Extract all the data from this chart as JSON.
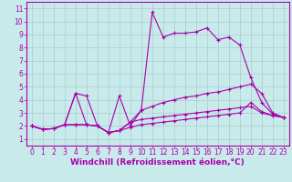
{
  "bg_color": "#c8eaea",
  "line_color": "#aa00aa",
  "grid_color": "#aacccc",
  "xlabel": "Windchill (Refroidissement éolien,°C)",
  "xlabel_fontsize": 6.5,
  "tick_fontsize": 5.5,
  "yticks": [
    1,
    2,
    3,
    4,
    5,
    6,
    7,
    8,
    9,
    10,
    11
  ],
  "xticks": [
    0,
    1,
    2,
    3,
    4,
    5,
    6,
    7,
    8,
    9,
    10,
    11,
    12,
    13,
    14,
    15,
    16,
    17,
    18,
    19,
    20,
    21,
    22,
    23
  ],
  "ylim": [
    0.5,
    11.5
  ],
  "xlim": [
    -0.5,
    23.5
  ],
  "series": [
    [
      2.0,
      1.75,
      1.8,
      2.1,
      4.5,
      4.3,
      2.0,
      1.5,
      1.65,
      1.9,
      2.1,
      2.2,
      2.3,
      2.4,
      2.5,
      2.6,
      2.7,
      2.8,
      2.9,
      3.0,
      3.8,
      3.1,
      2.8,
      2.65
    ],
    [
      2.0,
      1.75,
      1.8,
      2.1,
      4.5,
      2.1,
      2.0,
      1.5,
      4.3,
      2.0,
      3.2,
      10.7,
      8.8,
      9.1,
      9.1,
      9.2,
      9.5,
      8.6,
      8.8,
      8.2,
      5.7,
      3.8,
      2.9,
      2.65
    ],
    [
      2.0,
      1.75,
      1.8,
      2.1,
      2.1,
      2.1,
      2.0,
      1.5,
      1.65,
      2.3,
      3.2,
      3.5,
      3.8,
      4.0,
      4.2,
      4.3,
      4.5,
      4.6,
      4.8,
      5.0,
      5.2,
      4.5,
      3.0,
      2.65
    ],
    [
      2.0,
      1.75,
      1.8,
      2.1,
      2.1,
      2.1,
      2.0,
      1.5,
      1.65,
      2.3,
      2.5,
      2.6,
      2.7,
      2.8,
      2.9,
      3.0,
      3.1,
      3.2,
      3.3,
      3.4,
      3.5,
      3.0,
      2.8,
      2.65
    ]
  ]
}
